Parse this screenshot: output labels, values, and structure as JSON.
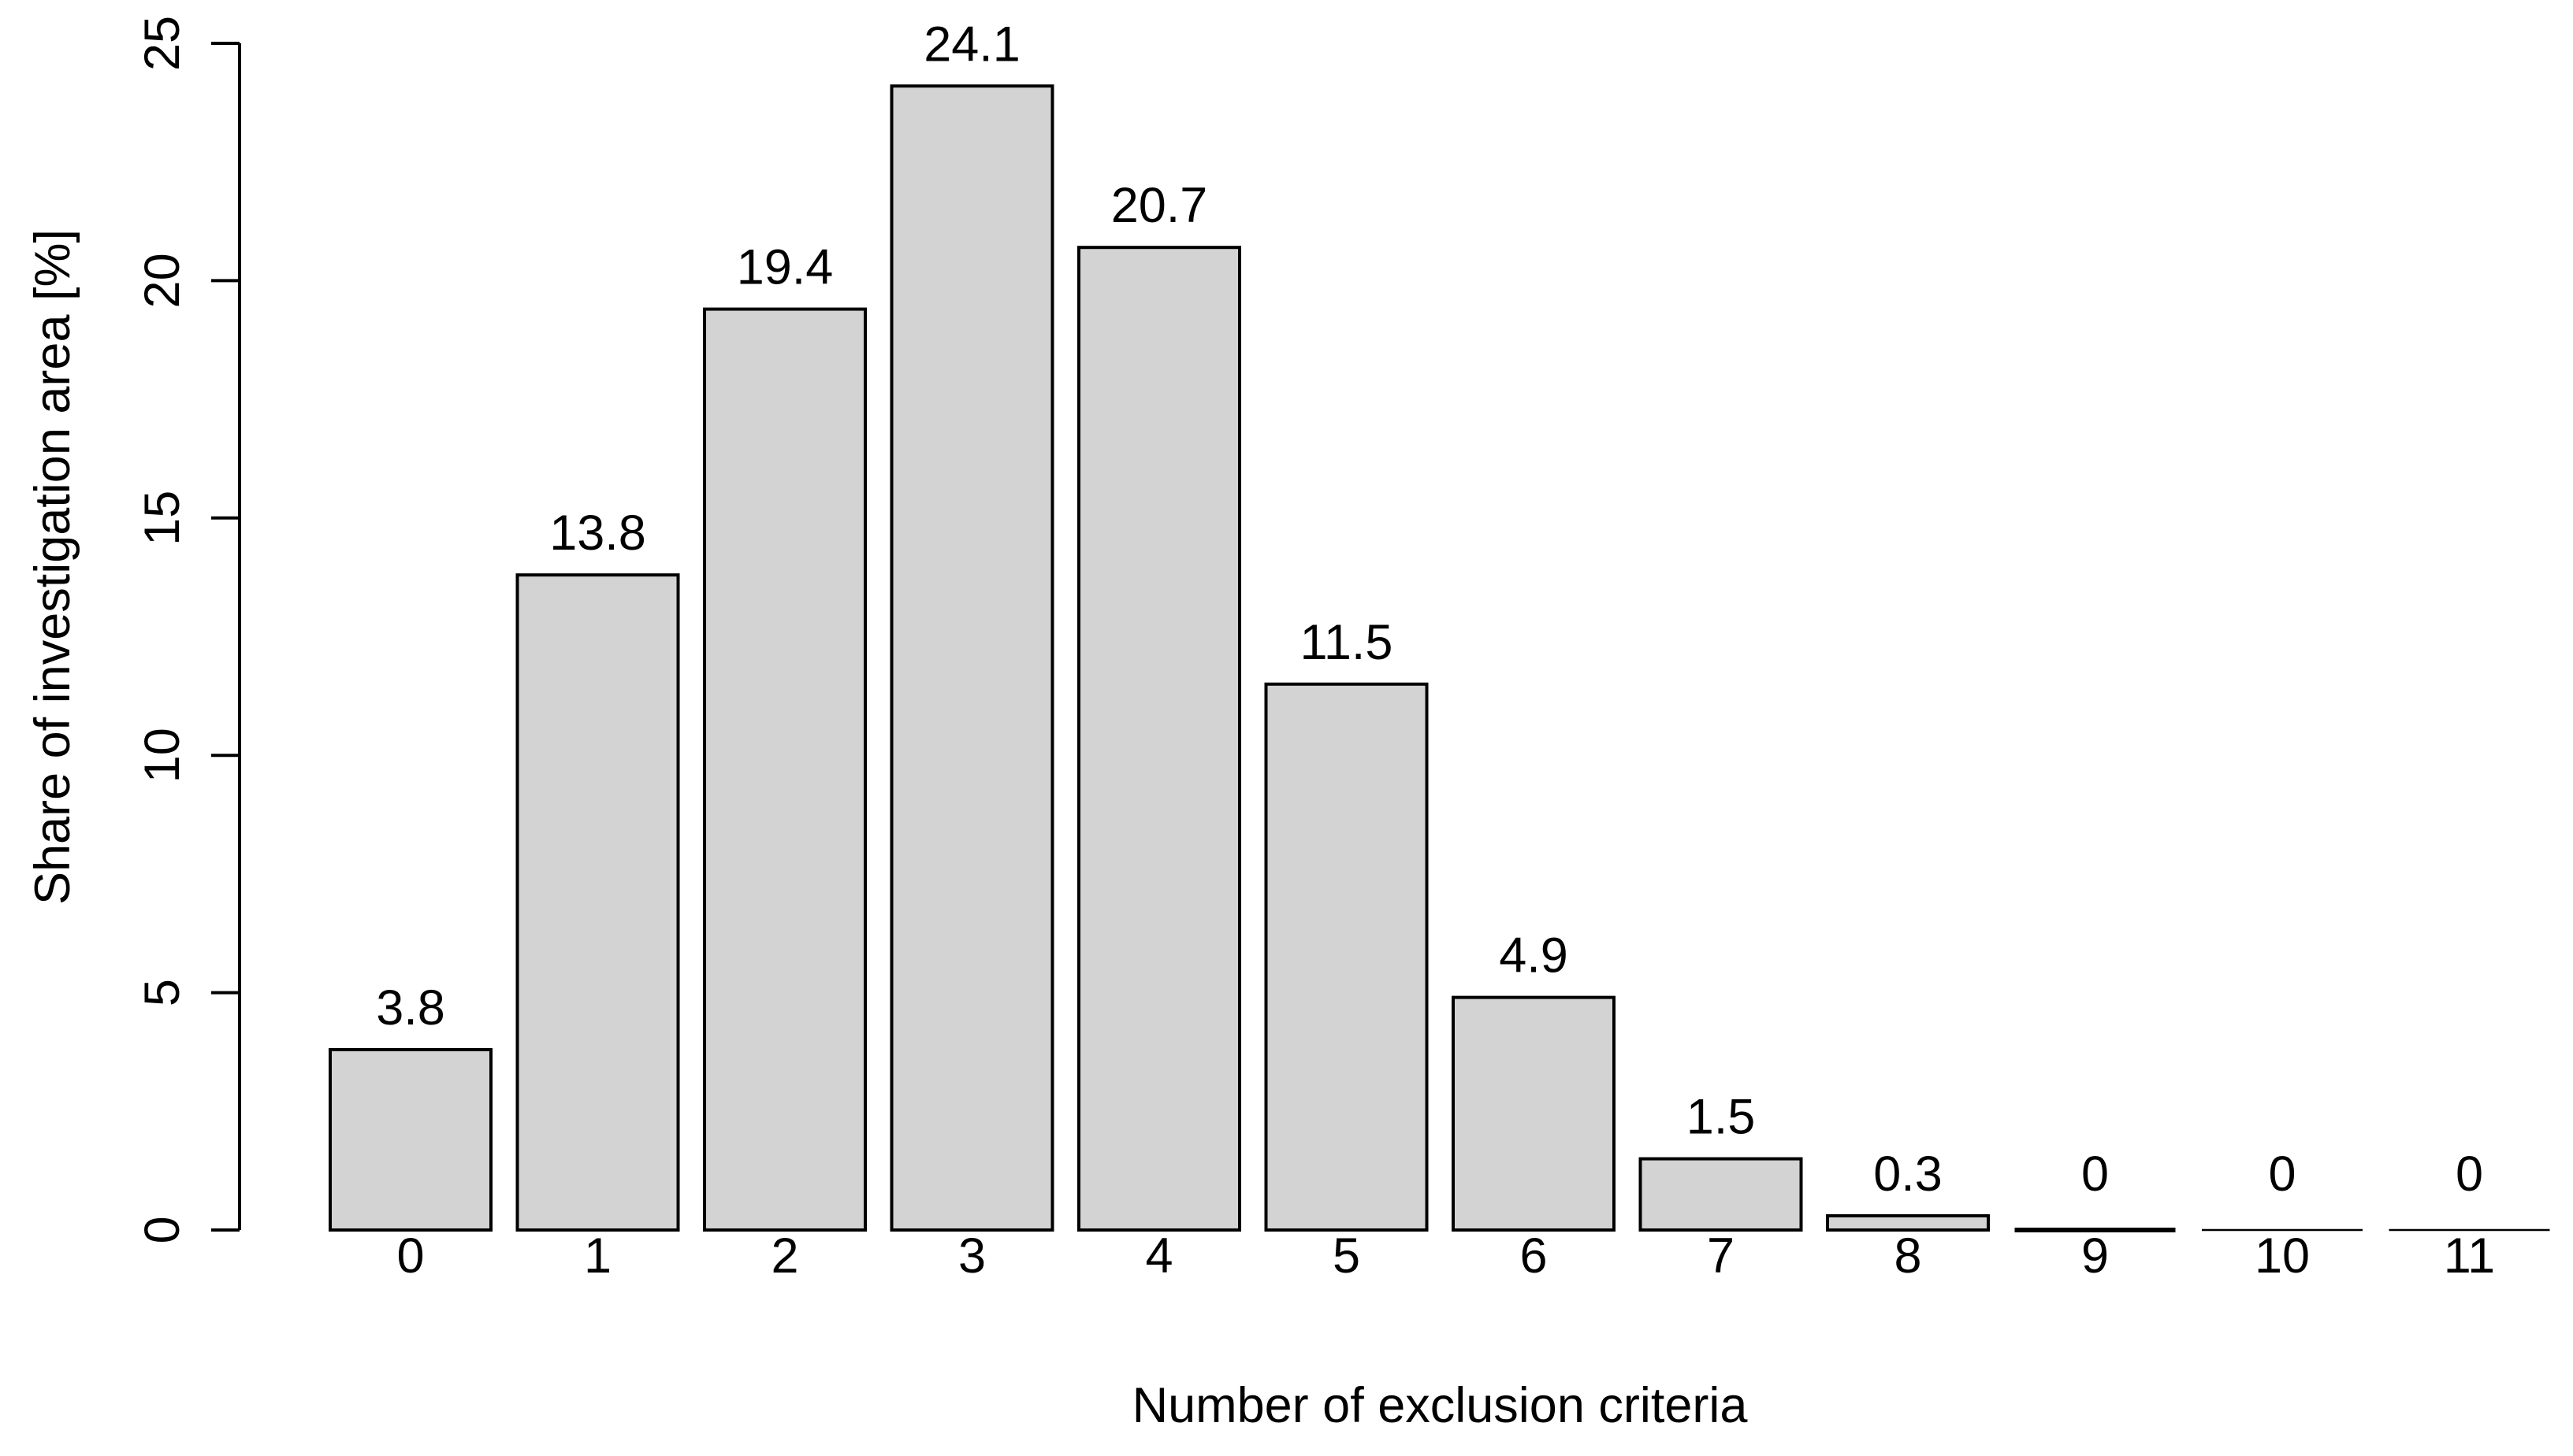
{
  "chart_data": {
    "type": "bar",
    "title": "",
    "xlabel": "Number of exclusion criteria",
    "ylabel": "Share of investigation area [%]",
    "categories": [
      "0",
      "1",
      "2",
      "3",
      "4",
      "5",
      "6",
      "7",
      "8",
      "9",
      "10",
      "11"
    ],
    "values": [
      3.8,
      13.8,
      19.4,
      24.1,
      20.7,
      11.5,
      4.9,
      1.5,
      0.3,
      0,
      0,
      0
    ],
    "value_labels": [
      "3.8",
      "13.8",
      "19.4",
      "24.1",
      "20.7",
      "11.5",
      "4.9",
      "1.5",
      "0.3",
      "0",
      "0",
      "0"
    ],
    "ylim": [
      0,
      25
    ],
    "yticks": [
      0,
      5,
      10,
      15,
      20,
      25
    ],
    "ytick_labels": [
      "0",
      "5",
      "10",
      "15",
      "20",
      "25"
    ],
    "ytick_label_orientation": "rotated-90",
    "grid": false,
    "legend": "none",
    "bar_fill": "#d3d3d3",
    "bar_border": "#000000",
    "axis_color": "#000000",
    "text_color": "#000000",
    "background": "#ffffff"
  }
}
